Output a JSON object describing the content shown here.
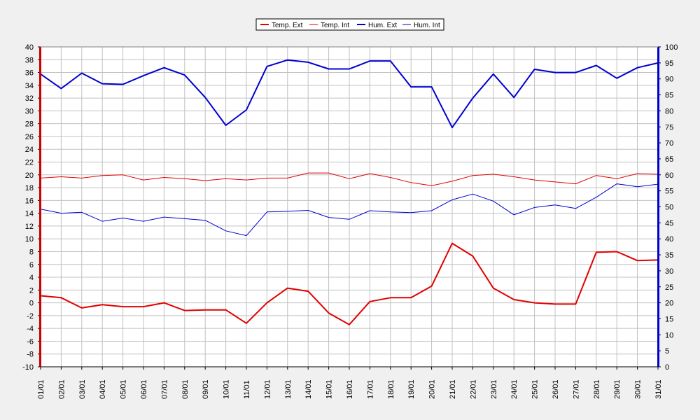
{
  "chart_data": {
    "type": "line",
    "title": "",
    "xlabel": "",
    "ylabel_left": "",
    "ylabel_right": "",
    "categories": [
      "01/01",
      "02/01",
      "03/01",
      "04/01",
      "05/01",
      "06/01",
      "07/01",
      "08/01",
      "09/01",
      "10/01",
      "11/01",
      "12/01",
      "13/01",
      "14/01",
      "15/01",
      "16/01",
      "17/01",
      "18/01",
      "19/01",
      "20/01",
      "21/01",
      "22/01",
      "23/01",
      "24/01",
      "25/01",
      "26/01",
      "27/01",
      "28/01",
      "29/01",
      "30/01",
      "31/01"
    ],
    "left_axis": {
      "ylim": [
        -10,
        40
      ],
      "ticks": [
        -10,
        -8,
        -6,
        -4,
        -2,
        0,
        2,
        4,
        6,
        8,
        10,
        12,
        14,
        16,
        18,
        20,
        22,
        24,
        26,
        28,
        30,
        32,
        34,
        36,
        38,
        40
      ],
      "color": "#cc0000"
    },
    "right_axis": {
      "ylim": [
        0,
        100
      ],
      "ticks": [
        0,
        5,
        10,
        15,
        20,
        25,
        30,
        35,
        40,
        45,
        50,
        55,
        60,
        65,
        70,
        75,
        80,
        85,
        90,
        95,
        100
      ],
      "color": "#0000cc"
    },
    "grid": true,
    "legend_position": "top-center",
    "series": [
      {
        "name": "Temp. Ext",
        "axis": "left",
        "color": "#e00000",
        "weight": "bold",
        "values": [
          1.1,
          0.8,
          -0.8,
          -0.3,
          -0.6,
          -0.6,
          0.0,
          -1.2,
          -1.1,
          -1.1,
          -3.2,
          0.0,
          2.3,
          1.8,
          -1.6,
          -3.4,
          0.2,
          0.8,
          0.8,
          2.6,
          9.3,
          7.3,
          2.3,
          0.5,
          0.0,
          -0.2,
          -0.2,
          7.9,
          8.0,
          6.6,
          6.7
        ]
      },
      {
        "name": "Temp. Int",
        "axis": "left",
        "color": "#e00000",
        "weight": "normal",
        "values": [
          19.5,
          19.7,
          19.5,
          19.9,
          20.0,
          19.2,
          19.6,
          19.4,
          19.1,
          19.4,
          19.2,
          19.5,
          19.5,
          20.3,
          20.3,
          19.4,
          20.2,
          19.6,
          18.8,
          18.3,
          19.0,
          19.9,
          20.1,
          19.7,
          19.2,
          18.9,
          18.6,
          19.9,
          19.4,
          20.2,
          20.1
        ]
      },
      {
        "name": "Hum. Ext",
        "axis": "right",
        "color": "#0000d0",
        "weight": "bold",
        "values": [
          91.5,
          87.0,
          91.8,
          88.5,
          88.3,
          91.0,
          93.5,
          91.2,
          84.2,
          75.5,
          80.3,
          93.9,
          95.9,
          95.2,
          93.1,
          93.1,
          95.6,
          95.6,
          87.5,
          87.5,
          74.8,
          84.0,
          91.5,
          84.2,
          93.0,
          92.0,
          92.0,
          94.2,
          90.2,
          93.5,
          95.0
        ]
      },
      {
        "name": "Hum. Int",
        "axis": "right",
        "color": "#0000d0",
        "weight": "normal",
        "values": [
          49.3,
          48.0,
          48.3,
          45.5,
          46.5,
          45.5,
          46.8,
          46.3,
          45.8,
          42.5,
          41.0,
          48.4,
          48.6,
          48.9,
          46.7,
          46.1,
          48.8,
          48.4,
          48.2,
          48.8,
          52.2,
          54.0,
          51.8,
          47.5,
          49.8,
          50.6,
          49.5,
          53.0,
          57.2,
          56.3,
          57.1
        ]
      }
    ]
  }
}
